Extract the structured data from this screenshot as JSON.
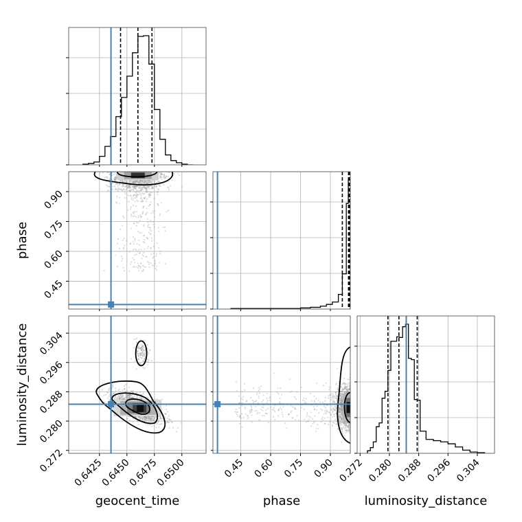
{
  "colors": {
    "truth": "#4682b4",
    "hist": "#000000",
    "grid": "#b0b0b0",
    "scatter": "#9a9a9a"
  },
  "chart_data": {
    "type": "corner",
    "parameters": [
      "geocent_time",
      "phase",
      "luminosity_distance"
    ],
    "ranges": {
      "geocent_time": [
        0.6397,
        0.6522
      ],
      "phase": [
        0.31,
        1.0
      ],
      "luminosity_distance": [
        0.2712,
        0.3087
      ]
    },
    "ticks": {
      "geocent_time": [
        "0.6425",
        "0.6450",
        "0.6475",
        "0.6500"
      ],
      "phase": [
        "0.45",
        "0.60",
        "0.75",
        "0.90"
      ],
      "luminosity_distance": [
        "0.272",
        "0.280",
        "0.288",
        "0.296",
        "0.304"
      ]
    },
    "truths": {
      "geocent_time": 0.64355,
      "phase": 0.333,
      "luminosity_distance": 0.2846
    },
    "quantiles": {
      "geocent_time": [
        0.64442,
        0.646,
        0.64728
      ],
      "phase": [
        0.96,
        0.991,
        0.996
      ],
      "luminosity_distance": [
        0.2796,
        0.2826,
        0.2876
      ]
    },
    "histograms": {
      "geocent_time": {
        "edges": [
          0.641,
          0.6415,
          0.642,
          0.6425,
          0.643,
          0.6435,
          0.644,
          0.6445,
          0.645,
          0.6455,
          0.646,
          0.6465,
          0.647,
          0.6475,
          0.648,
          0.6485,
          0.649,
          0.6495,
          0.65,
          0.6505,
          0.651
        ],
        "counts": [
          1,
          2,
          4,
          12,
          26,
          40,
          68,
          95,
          125,
          158,
          181,
          182,
          142,
          78,
          36,
          14,
          6,
          3,
          1,
          0
        ]
      },
      "phase": {
        "edges": [
          0.4,
          0.5,
          0.6,
          0.7,
          0.75,
          0.8,
          0.85,
          0.88,
          0.91,
          0.94,
          0.96,
          0.98,
          0.99,
          1.0
        ],
        "counts": [
          1,
          1,
          1,
          1,
          2,
          3,
          5,
          8,
          12,
          25,
          60,
          180,
          220
        ]
      },
      "luminosity_distance": {
        "edges": [
          0.274,
          0.2748,
          0.2756,
          0.2764,
          0.2772,
          0.278,
          0.2788,
          0.2796,
          0.2804,
          0.2812,
          0.282,
          0.2828,
          0.2836,
          0.2844,
          0.2852,
          0.286,
          0.2868,
          0.2876,
          0.2884,
          0.29,
          0.292,
          0.294,
          0.296,
          0.298,
          0.3,
          0.302,
          0.304,
          0.306
        ],
        "counts": [
          4,
          9,
          18,
          42,
          48,
          87,
          98,
          131,
          177,
          177,
          184,
          183,
          200,
          204,
          150,
          148,
          85,
          84,
          35,
          22,
          20,
          18,
          15,
          10,
          5,
          2,
          1
        ]
      }
    }
  }
}
